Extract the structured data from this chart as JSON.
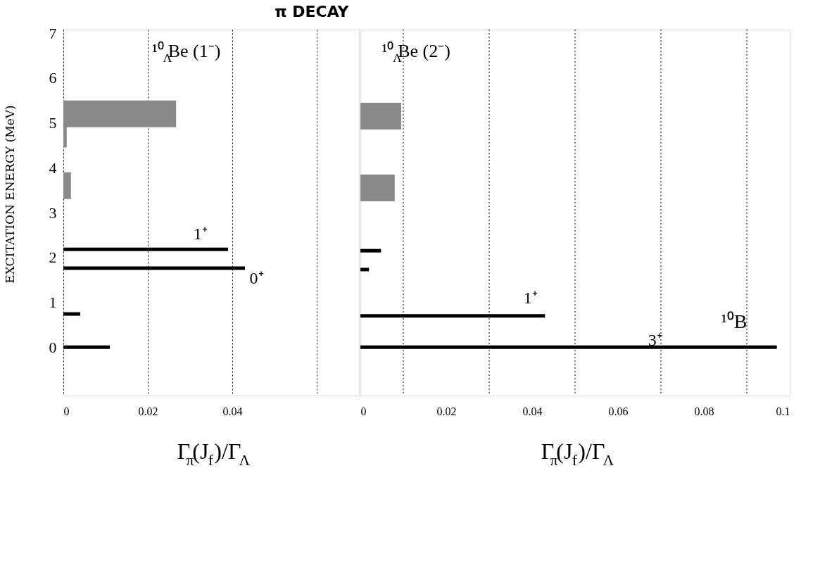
{
  "chart_data": [
    {
      "type": "bar",
      "orientation": "horizontal",
      "title": "π    DECAY",
      "ylabel": "EXCITATION ENERGY    (MeV)",
      "xlabel": "Γ$_{π}$(J$_{f}$)/Γ$_{Λ}$",
      "series": [
        {
          "color": "#000000",
          "x": [
            0.0,
            0.74,
            1.76,
            2.18
          ],
          "values": [
            0.011,
            0.004,
            0.043,
            0.039
          ]
        },
        {
          "color": "#8a8a8a",
          "x": [
            3.6,
            4.75,
            5.2
          ],
          "values": [
            0.0018,
            0.0008,
            0.0267
          ]
        }
      ],
      "xlim": [
        0,
        0.07
      ],
      "xticks": [
        0,
        0.02,
        0.04,
        {
          "value": 0.06,
          "label": null
        }
      ],
      "ylim": [
        -1,
        7
      ],
      "yticks": [
        0,
        1,
        2,
        3,
        4,
        5,
        6,
        7
      ],
      "grid": "x",
      "annotations": [
        "¹⁰$_{Λ}$Be  (1⁻)",
        "1⁺",
        "0⁺"
      ]
    },
    {
      "type": "bar",
      "orientation": "horizontal",
      "xlabel": "Γ$_{π}$(J$_{f}$)/Γ$_{Λ}$",
      "tick_labels": "x",
      "series": [
        {
          "color": "#000000",
          "x": [
            0.0,
            0.7,
            1.73,
            2.15
          ],
          "values": [
            0.097,
            0.043,
            0.002,
            0.0048
          ]
        },
        {
          "color": "#8a8a8a",
          "x": [
            3.55,
            5.15
          ],
          "values": [
            0.008,
            0.0095
          ]
        }
      ],
      "xlim": [
        0,
        0.1
      ],
      "xticks": [
        0,
        0.02,
        0.04,
        0.06,
        0.08,
        0.1
      ],
      "ylim": [
        -1,
        7
      ],
      "yticks": [
        0,
        1,
        2,
        3,
        4,
        5,
        6,
        7
      ],
      "ref_lines": [
        {
          "axis": "x",
          "value": 0.01,
          "line_style": "dotted"
        },
        {
          "axis": "x",
          "value": 0.03,
          "line_style": "dotted"
        },
        {
          "axis": "x",
          "value": 0.05,
          "line_style": "dotted"
        },
        {
          "axis": "x",
          "value": 0.07,
          "line_style": "dotted"
        },
        {
          "axis": "x",
          "value": 0.09,
          "line_style": "dotted"
        }
      ],
      "annotations": [
        "¹⁰$_{Λ}$Be  (2⁻)",
        "1⁺",
        "3⁺",
        "¹⁰B"
      ]
    }
  ]
}
